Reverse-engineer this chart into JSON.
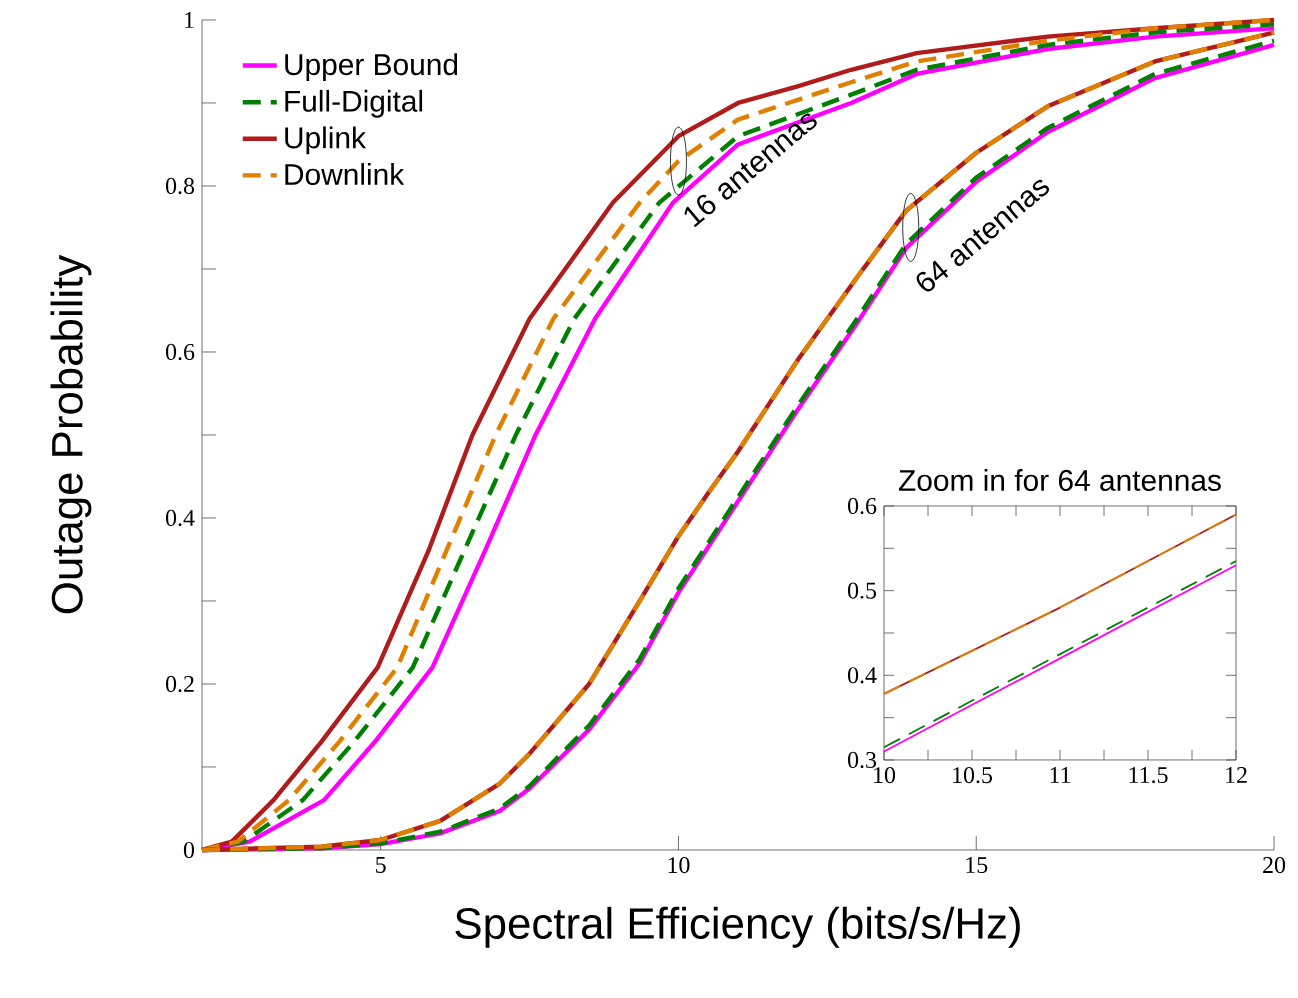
{
  "chart_data": [
    {
      "type": "line",
      "xlabel": "Spectral Efficiency (bits/s/Hz)",
      "ylabel": "Outage Probability",
      "xlim": [
        2,
        20
      ],
      "ylim": [
        0,
        1
      ],
      "xticks": [
        5,
        10,
        15,
        20
      ],
      "yticks": [
        0,
        {
          "value": 0.1,
          "label": null
        },
        0.2,
        {
          "value": 0.3,
          "label": null
        },
        0.4,
        {
          "value": 0.5,
          "label": null
        },
        0.6,
        {
          "value": 0.7,
          "label": null
        },
        0.8,
        {
          "value": 0.9,
          "label": null
        },
        1
      ],
      "legend": "top left",
      "grid": false,
      "annotations": [
        {
          "text": "16 antennas",
          "x": 10,
          "y": 0.83
        },
        {
          "text": "64 antennas",
          "x": 13.9,
          "y": 0.75
        }
      ],
      "series": [
        {
          "name": "Upper Bound",
          "color": "#ff00ff",
          "line_style": "solid",
          "x": [
            2,
            2.8,
            4.05,
            4.9,
            5.87,
            6.75,
            7.6,
            8.6,
            9.91,
            11,
            12.9,
            14,
            16.2,
            18,
            20
          ],
          "values": [
            0,
            0.01,
            0.06,
            0.13,
            0.22,
            0.36,
            0.5,
            0.64,
            0.78,
            0.85,
            0.9,
            0.935,
            0.965,
            0.98,
            0.99
          ]
        },
        {
          "name": "Full-Digital",
          "color": "#008000",
          "line_style": "dashed",
          "x": [
            2,
            2.7,
            3.69,
            4.55,
            5.54,
            6.4,
            7.27,
            8.25,
            9.68,
            11,
            12.9,
            14,
            16.2,
            18,
            20
          ],
          "values": [
            0,
            0.01,
            0.06,
            0.13,
            0.22,
            0.36,
            0.5,
            0.64,
            0.78,
            0.86,
            0.91,
            0.94,
            0.97,
            0.985,
            0.995
          ]
        },
        {
          "name": "Uplink",
          "color": "#b01c1c",
          "line_style": "solid",
          "x": [
            2,
            2.5,
            3.2,
            4,
            4.95,
            5.8,
            6.54,
            7.5,
            8.9,
            10,
            11,
            12,
            12.9,
            14,
            16.2,
            18,
            20
          ],
          "values": [
            0,
            0.01,
            0.06,
            0.13,
            0.22,
            0.36,
            0.5,
            0.64,
            0.78,
            0.86,
            0.9,
            0.92,
            0.94,
            0.96,
            0.98,
            0.99,
            1
          ]
        },
        {
          "name": "Downlink",
          "color": "#e08000",
          "line_style": "dashed",
          "x": [
            2,
            2.6,
            3.46,
            4.3,
            5.28,
            6.1,
            6.93,
            7.9,
            9.35,
            10,
            11,
            12.9,
            14,
            16.2,
            18,
            20
          ],
          "values": [
            0,
            0.01,
            0.06,
            0.13,
            0.22,
            0.36,
            0.5,
            0.64,
            0.78,
            0.83,
            0.88,
            0.925,
            0.95,
            0.975,
            0.99,
            1
          ]
        },
        {
          "color": "#ff00ff",
          "line_style": "solid",
          "x": [
            2,
            4,
            5,
            6,
            7,
            7.5,
            8.5,
            9.35,
            10,
            10.5,
            11,
            11.5,
            12,
            13,
            13.82,
            15,
            16.2,
            18,
            20
          ],
          "values": [
            0,
            0.002,
            0.007,
            0.02,
            0.047,
            0.074,
            0.145,
            0.225,
            0.31,
            0.365,
            0.42,
            0.475,
            0.53,
            0.635,
            0.725,
            0.805,
            0.865,
            0.93,
            0.97
          ]
        },
        {
          "color": "#008000",
          "line_style": "dashed",
          "x": [
            2,
            4,
            5,
            6,
            7,
            7.5,
            8.5,
            9.35,
            10,
            10.5,
            11,
            11.5,
            12,
            13,
            13.82,
            15,
            16.2,
            18,
            20
          ],
          "values": [
            0,
            0.002,
            0.008,
            0.022,
            0.05,
            0.077,
            0.15,
            0.23,
            0.315,
            0.37,
            0.425,
            0.48,
            0.535,
            0.64,
            0.73,
            0.81,
            0.87,
            0.935,
            0.975
          ]
        },
        {
          "color": "#b01c1c",
          "line_style": "solid",
          "x": [
            2,
            4,
            5,
            6,
            7,
            7.5,
            8.5,
            9.35,
            10,
            10.5,
            11,
            11.5,
            12,
            13,
            13.82,
            15,
            16.2,
            18,
            20
          ],
          "values": [
            0,
            0.004,
            0.012,
            0.035,
            0.08,
            0.116,
            0.2,
            0.3,
            0.378,
            0.43,
            0.48,
            0.535,
            0.59,
            0.69,
            0.77,
            0.84,
            0.896,
            0.95,
            0.985
          ]
        },
        {
          "color": "#e08000",
          "line_style": "dashed",
          "x": [
            2,
            4,
            5,
            6,
            7,
            7.5,
            8.5,
            9.35,
            10,
            10.5,
            11,
            11.5,
            12,
            13,
            13.82,
            15,
            16.2,
            18,
            20
          ],
          "values": [
            0,
            0.004,
            0.012,
            0.035,
            0.08,
            0.116,
            0.2,
            0.3,
            0.378,
            0.43,
            0.48,
            0.535,
            0.59,
            0.69,
            0.77,
            0.84,
            0.896,
            0.95,
            0.985
          ]
        }
      ]
    },
    {
      "type": "line",
      "title": "Zoom in for 64 antennas",
      "xlim": [
        10,
        12
      ],
      "ylim": [
        0.3,
        0.6
      ],
      "xticks": [
        10,
        {
          "value": 10.25,
          "label": null
        },
        10.5,
        {
          "value": 10.75,
          "label": null
        },
        11,
        {
          "value": 11.25,
          "label": null
        },
        11.5,
        {
          "value": 11.75,
          "label": null
        },
        12
      ],
      "yticks": [
        0.3,
        {
          "value": 0.35,
          "label": null
        },
        0.4,
        {
          "value": 0.45,
          "label": null
        },
        0.5,
        {
          "value": 0.55,
          "label": null
        },
        0.6
      ],
      "grid": false,
      "series": [
        {
          "color": "#ff00ff",
          "line_style": "solid",
          "x": [
            10,
            11,
            12
          ],
          "values": [
            0.31,
            0.42,
            0.53
          ]
        },
        {
          "color": "#008000",
          "line_style": "dashed",
          "x": [
            10,
            11,
            12
          ],
          "values": [
            0.315,
            0.425,
            0.535
          ]
        },
        {
          "color": "#b01c1c",
          "line_style": "solid",
          "x": [
            10,
            11,
            12
          ],
          "values": [
            0.378,
            0.48,
            0.59
          ]
        },
        {
          "color": "#e08000",
          "line_style": "dashed",
          "x": [
            10,
            11,
            12
          ],
          "values": [
            0.378,
            0.48,
            0.59
          ]
        }
      ]
    }
  ]
}
